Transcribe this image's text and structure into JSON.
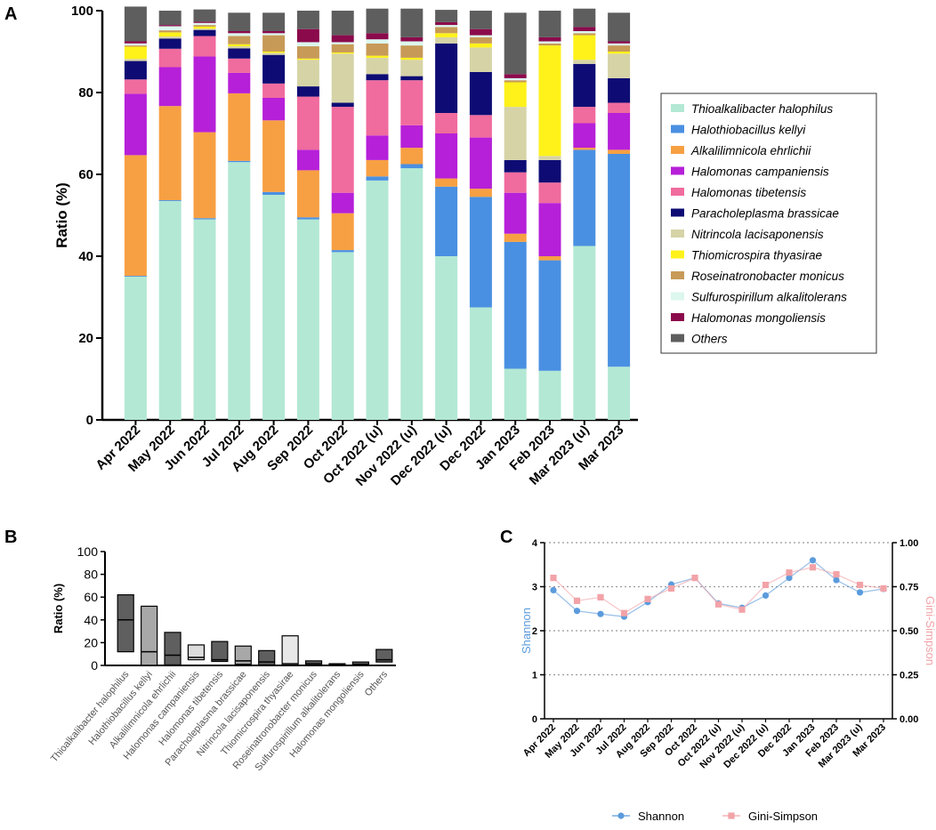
{
  "panels": {
    "a": "A",
    "b": "B",
    "c": "C"
  },
  "chart_data": [
    {
      "type": "bar",
      "stacked": true,
      "panel": "A",
      "ylabel": "Ratio (%)",
      "ylim": [
        0,
        100
      ],
      "yticks": [
        0,
        20,
        40,
        60,
        80,
        100
      ],
      "categories": [
        "Apr 2022",
        "May 2022",
        "Jun 2022",
        "Jul 2022",
        "Aug 2022",
        "Sep 2022",
        "Oct 2022",
        "Oct 2022 (u)",
        "Nov 2022 (u)",
        "Dec 2022 (u)",
        "Dec 2022",
        "Jan 2023",
        "Feb 2023",
        "Mar 2023 (u)",
        "Mar 2023"
      ],
      "series": [
        {
          "name": "Thioalkalibacter halophilus",
          "color": "#b3e8d4",
          "values": [
            35,
            53.5,
            49,
            63,
            55,
            49,
            41,
            58.5,
            61.5,
            40,
            27.5,
            12.5,
            12,
            42.5,
            13
          ]
        },
        {
          "name": "Halothiobacillus kellyi",
          "color": "#4a90e2",
          "values": [
            0.2,
            0.2,
            0.3,
            0.3,
            0.7,
            0.5,
            0.5,
            1,
            1,
            17,
            27,
            31,
            27,
            23.5,
            52
          ]
        },
        {
          "name": "Alkalilimnicola ehrlichii",
          "color": "#f7a043",
          "values": [
            29.5,
            23,
            21,
            16.5,
            17.5,
            11.5,
            9,
            4,
            4,
            2,
            2,
            2,
            1,
            0.5,
            1
          ]
        },
        {
          "name": "Halomonas campaniensis",
          "color": "#b620d8",
          "values": [
            15,
            9.5,
            18.5,
            5,
            5.5,
            5,
            5,
            6,
            5.5,
            11,
            12.5,
            10,
            13,
            6,
            9
          ]
        },
        {
          "name": "Halomonas tibetensis",
          "color": "#f06b9e",
          "values": [
            3.5,
            4.5,
            5,
            3.5,
            3.5,
            13,
            21,
            13.5,
            11,
            5,
            5.5,
            5,
            5,
            4,
            2.5
          ]
        },
        {
          "name": "Paracholeplasma brassicae",
          "color": "#0e0c74",
          "values": [
            4.5,
            2.5,
            1.5,
            2.5,
            7,
            2.5,
            1,
            1.5,
            1,
            17,
            10.5,
            3,
            5.5,
            10.5,
            6
          ]
        },
        {
          "name": "Nitrincola lacisaponensis",
          "color": "#d6d3a7",
          "values": [
            0.5,
            0.5,
            0.3,
            0.5,
            0.5,
            6.5,
            12,
            4,
            4,
            1.5,
            6,
            13,
            1,
            1,
            6
          ]
        },
        {
          "name": "Thiomicrospira thyasirae",
          "color": "#fff21a",
          "values": [
            3,
            1,
            0.5,
            0.5,
            0.3,
            0.3,
            0.3,
            0.5,
            0.5,
            1,
            1,
            6,
            27,
            6,
            0.5
          ]
        },
        {
          "name": "Roseinatronobacter monicus",
          "color": "#c79a58",
          "values": [
            0.3,
            0.5,
            0.4,
            2,
            4,
            3,
            2,
            3,
            3,
            1.5,
            1.5,
            0.5,
            0.5,
            0.5,
            1.5
          ]
        },
        {
          "name": "Sulfurospirillum alkalitolerans",
          "color": "#dcf7ee",
          "values": [
            0.5,
            1,
            0.5,
            0.7,
            0.5,
            1,
            0.5,
            1,
            1,
            0.5,
            0.5,
            0.5,
            0.5,
            0.5,
            0.5
          ]
        },
        {
          "name": "Halomonas mongoliensis",
          "color": "#8b0a4c",
          "values": [
            0.5,
            0.3,
            0.3,
            0.5,
            0.5,
            3.2,
            1.7,
            1.5,
            1,
            0.7,
            1.5,
            1,
            1,
            1,
            0.5
          ]
        },
        {
          "name": "Others",
          "color": "#5e5e5e",
          "values": [
            8.5,
            3.5,
            3,
            4.5,
            4.5,
            4.5,
            6,
            6,
            7,
            3,
            4.5,
            15,
            6.5,
            4.5,
            7
          ]
        }
      ]
    },
    {
      "type": "box",
      "panel": "B",
      "ylabel": "Ratio (%)",
      "ylim": [
        0,
        100
      ],
      "yticks": [
        0,
        20,
        40,
        60,
        80,
        100
      ],
      "categories": [
        "Thioalkalibacter halophilus",
        "Halothiobacillus kellyi",
        "Alkalilimnicola ehrlichii",
        "Halomonas campaniensis",
        "Halomonas tibetensis",
        "Paracholeplasma brassicae",
        "Nitrincola lacisaponensis",
        "Thiomicrospira thyasirae",
        "Roseinatronobacter monicus",
        "Sulfurospirillum alkalitolerans",
        "Halomonas mongoliensis",
        "Others"
      ],
      "boxes": [
        {
          "min": 12,
          "max": 62,
          "median": 40,
          "color": "#5f5f5f"
        },
        {
          "min": 0.2,
          "max": 52,
          "median": 12,
          "color": "#a8a8a8"
        },
        {
          "min": 0.5,
          "max": 29,
          "median": 9,
          "color": "#5f5f5f"
        },
        {
          "min": 5,
          "max": 18,
          "median": 7,
          "color": "#dcdcdc"
        },
        {
          "min": 3.5,
          "max": 21,
          "median": 5,
          "color": "#5f5f5f"
        },
        {
          "min": 1,
          "max": 17,
          "median": 4,
          "color": "#a8a8a8"
        },
        {
          "min": 0.5,
          "max": 13,
          "median": 3,
          "color": "#5f5f5f"
        },
        {
          "min": 0.3,
          "max": 26,
          "median": 1.5,
          "color": "#e8e8e8"
        },
        {
          "min": 0.3,
          "max": 4,
          "median": 1.5,
          "color": "#5f5f5f"
        },
        {
          "min": 0.5,
          "max": 1.5,
          "median": 0.8,
          "color": "#5f5f5f"
        },
        {
          "min": 0.3,
          "max": 3,
          "median": 1,
          "color": "#5f5f5f"
        },
        {
          "min": 3,
          "max": 14,
          "median": 5,
          "color": "#5f5f5f"
        }
      ]
    },
    {
      "type": "line",
      "panel": "C",
      "ylabel_left": "Shannon",
      "ylabel_right": "Gini-Simpson",
      "ylim_left": [
        0,
        4
      ],
      "ylim_right": [
        0,
        1
      ],
      "yticks_left": [
        "0",
        "1",
        "2",
        "3",
        "4"
      ],
      "yticks_right": [
        "0.00",
        "0.25",
        "0.50",
        "0.75",
        "1.00"
      ],
      "grid": true,
      "categories": [
        "Apr 2022",
        "May 2022",
        "Jun 2022",
        "Jul 2022",
        "Aug 2022",
        "Sep 2022",
        "Oct 2022",
        "Oct 2022 (u)",
        "Nov 2022 (u)",
        "Dec 2022 (u)",
        "Dec 2022",
        "Jan 2023",
        "Feb 2023",
        "Mar 2023 (u)",
        "Mar 2023"
      ],
      "series": [
        {
          "name": "Shannon",
          "axis": "left",
          "color": "#5b9bdc",
          "marker": "circle",
          "values": [
            2.92,
            2.45,
            2.38,
            2.32,
            2.65,
            3.05,
            3.2,
            2.62,
            2.52,
            2.8,
            3.2,
            3.6,
            3.15,
            2.87,
            2.95
          ]
        },
        {
          "name": "Gini-Simpson",
          "axis": "right",
          "color": "#f2a3a8",
          "marker": "square",
          "values": [
            0.8,
            0.67,
            0.69,
            0.6,
            0.68,
            0.74,
            0.8,
            0.65,
            0.62,
            0.76,
            0.83,
            0.86,
            0.82,
            0.76,
            0.74
          ]
        }
      ]
    }
  ]
}
